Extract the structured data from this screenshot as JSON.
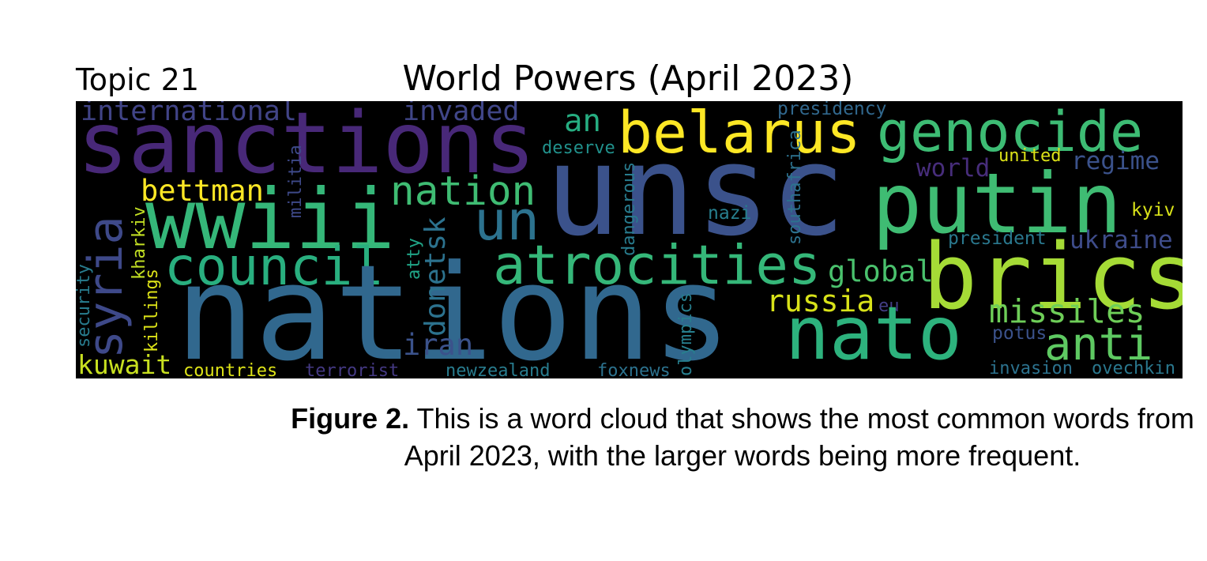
{
  "topic_label": "Topic 21",
  "title": "World Powers (April 2023)",
  "cloud": {
    "background": "#000000",
    "words": [
      {
        "text": "nations",
        "color": "#31688e"
      },
      {
        "text": "unsc",
        "color": "#3b528b"
      },
      {
        "text": "sanctions",
        "color": "#482878"
      },
      {
        "text": "wwiii",
        "color": "#35b779"
      },
      {
        "text": "putin",
        "color": "#3fbc73"
      },
      {
        "text": "brics",
        "color": "#a5db36"
      },
      {
        "text": "genocide",
        "color": "#3dbc74"
      },
      {
        "text": "belarus",
        "color": "#fde725"
      },
      {
        "text": "nato",
        "color": "#2db27d"
      },
      {
        "text": "atrocities",
        "color": "#35b779"
      },
      {
        "text": "council",
        "color": "#29af7f"
      },
      {
        "text": "syria",
        "color": "#3e4989"
      },
      {
        "text": "nation",
        "color": "#3fbc73"
      },
      {
        "text": "un",
        "color": "#2c728e"
      },
      {
        "text": "anti",
        "color": "#5ec962"
      },
      {
        "text": "international",
        "color": "#414487"
      },
      {
        "text": "invaded",
        "color": "#404688"
      },
      {
        "text": "bettman",
        "color": "#fde725"
      },
      {
        "text": "missiles",
        "color": "#6ece58"
      },
      {
        "text": "russia",
        "color": "#d8e219"
      },
      {
        "text": "global",
        "color": "#4ac16d"
      },
      {
        "text": "ukraine",
        "color": "#3e4c8a"
      },
      {
        "text": "donetsk",
        "color": "#2c728e"
      },
      {
        "text": "world",
        "color": "#472d7b"
      },
      {
        "text": "regime",
        "color": "#3b528b"
      },
      {
        "text": "kuwait",
        "color": "#c8e020"
      },
      {
        "text": "iran",
        "color": "#3b528b"
      },
      {
        "text": "an",
        "color": "#26ad81"
      },
      {
        "text": "deserve",
        "color": "#21918c"
      },
      {
        "text": "united",
        "color": "#dde318"
      },
      {
        "text": "president",
        "color": "#2a788e"
      },
      {
        "text": "kyiv",
        "color": "#d8e219"
      },
      {
        "text": "nazi",
        "color": "#277f8e"
      },
      {
        "text": "potus",
        "color": "#3b528b"
      },
      {
        "text": "presidency",
        "color": "#31688e"
      },
      {
        "text": "eu",
        "color": "#433e85"
      },
      {
        "text": "invasion",
        "color": "#2c728e"
      },
      {
        "text": "ovechkin",
        "color": "#2a788e"
      },
      {
        "text": "countries",
        "color": "#dde318"
      },
      {
        "text": "terrorist",
        "color": "#443983"
      },
      {
        "text": "newzealand",
        "color": "#287c8e"
      },
      {
        "text": "foxnews",
        "color": "#2c728e"
      },
      {
        "text": "security",
        "color": "#287c8e"
      },
      {
        "text": "killings",
        "color": "#dde318"
      },
      {
        "text": "kharkiv",
        "color": "#c2df23"
      },
      {
        "text": "atty",
        "color": "#20a486"
      },
      {
        "text": "militia",
        "color": "#3e4989"
      },
      {
        "text": "dangerous",
        "color": "#287c8e"
      },
      {
        "text": "olympics",
        "color": "#277f8e"
      },
      {
        "text": "southafrica",
        "color": "#2c728e"
      }
    ]
  },
  "caption": {
    "label": "Figure 2.",
    "text": " This is a word cloud that shows the most common words from April 2023, with the larger words being more frequent."
  }
}
